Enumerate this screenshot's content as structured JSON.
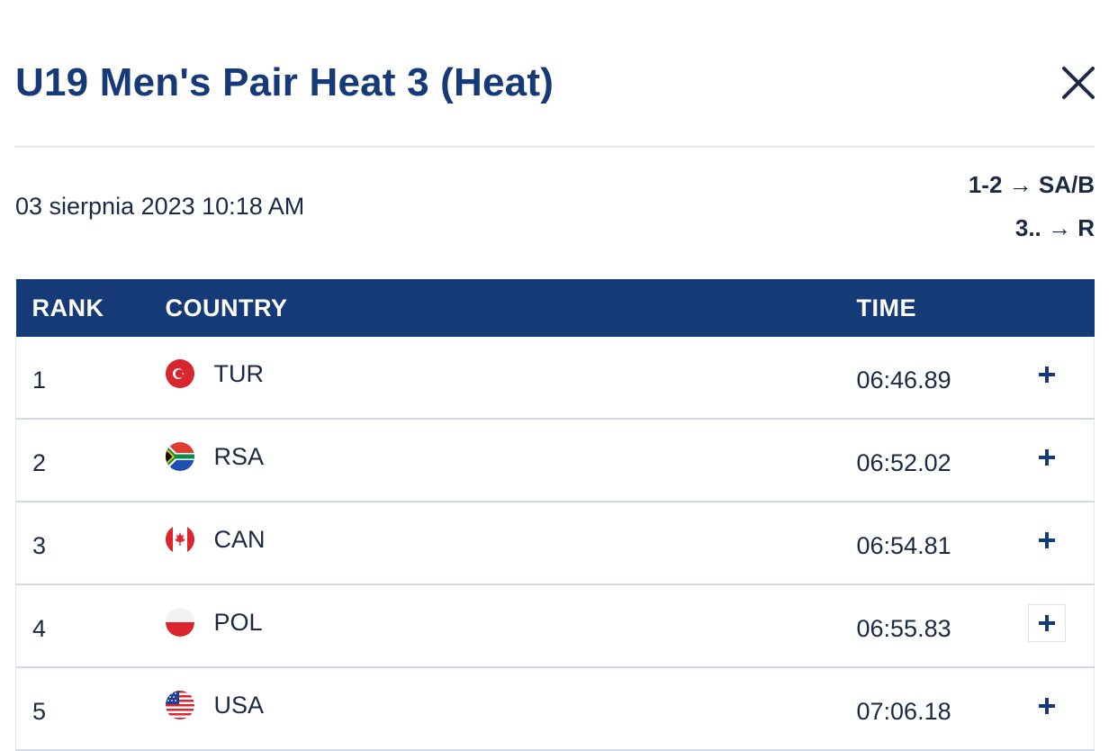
{
  "title": "U19 Men's Pair Heat 3 (Heat)",
  "datetime": "03 sierpnia 2023 10:18 AM",
  "progression": [
    "1-2 → SA/B",
    "3.. → R"
  ],
  "table": {
    "headers": {
      "rank": "RANK",
      "country": "COUNTRY",
      "time": "TIME"
    },
    "rows": [
      {
        "rank": "1",
        "country": "TUR",
        "flag": "turkey-flag-icon",
        "time": "06:46.89"
      },
      {
        "rank": "2",
        "country": "RSA",
        "flag": "south-africa-flag-icon",
        "time": "06:52.02"
      },
      {
        "rank": "3",
        "country": "CAN",
        "flag": "canada-flag-icon",
        "time": "06:54.81"
      },
      {
        "rank": "4",
        "country": "POL",
        "flag": "poland-flag-icon",
        "time": "06:55.83"
      },
      {
        "rank": "5",
        "country": "USA",
        "flag": "usa-flag-icon",
        "time": "07:06.18"
      }
    ]
  },
  "colors": {
    "header_bg": "#163a78",
    "title": "#163a78",
    "text": "#1b2a44"
  }
}
